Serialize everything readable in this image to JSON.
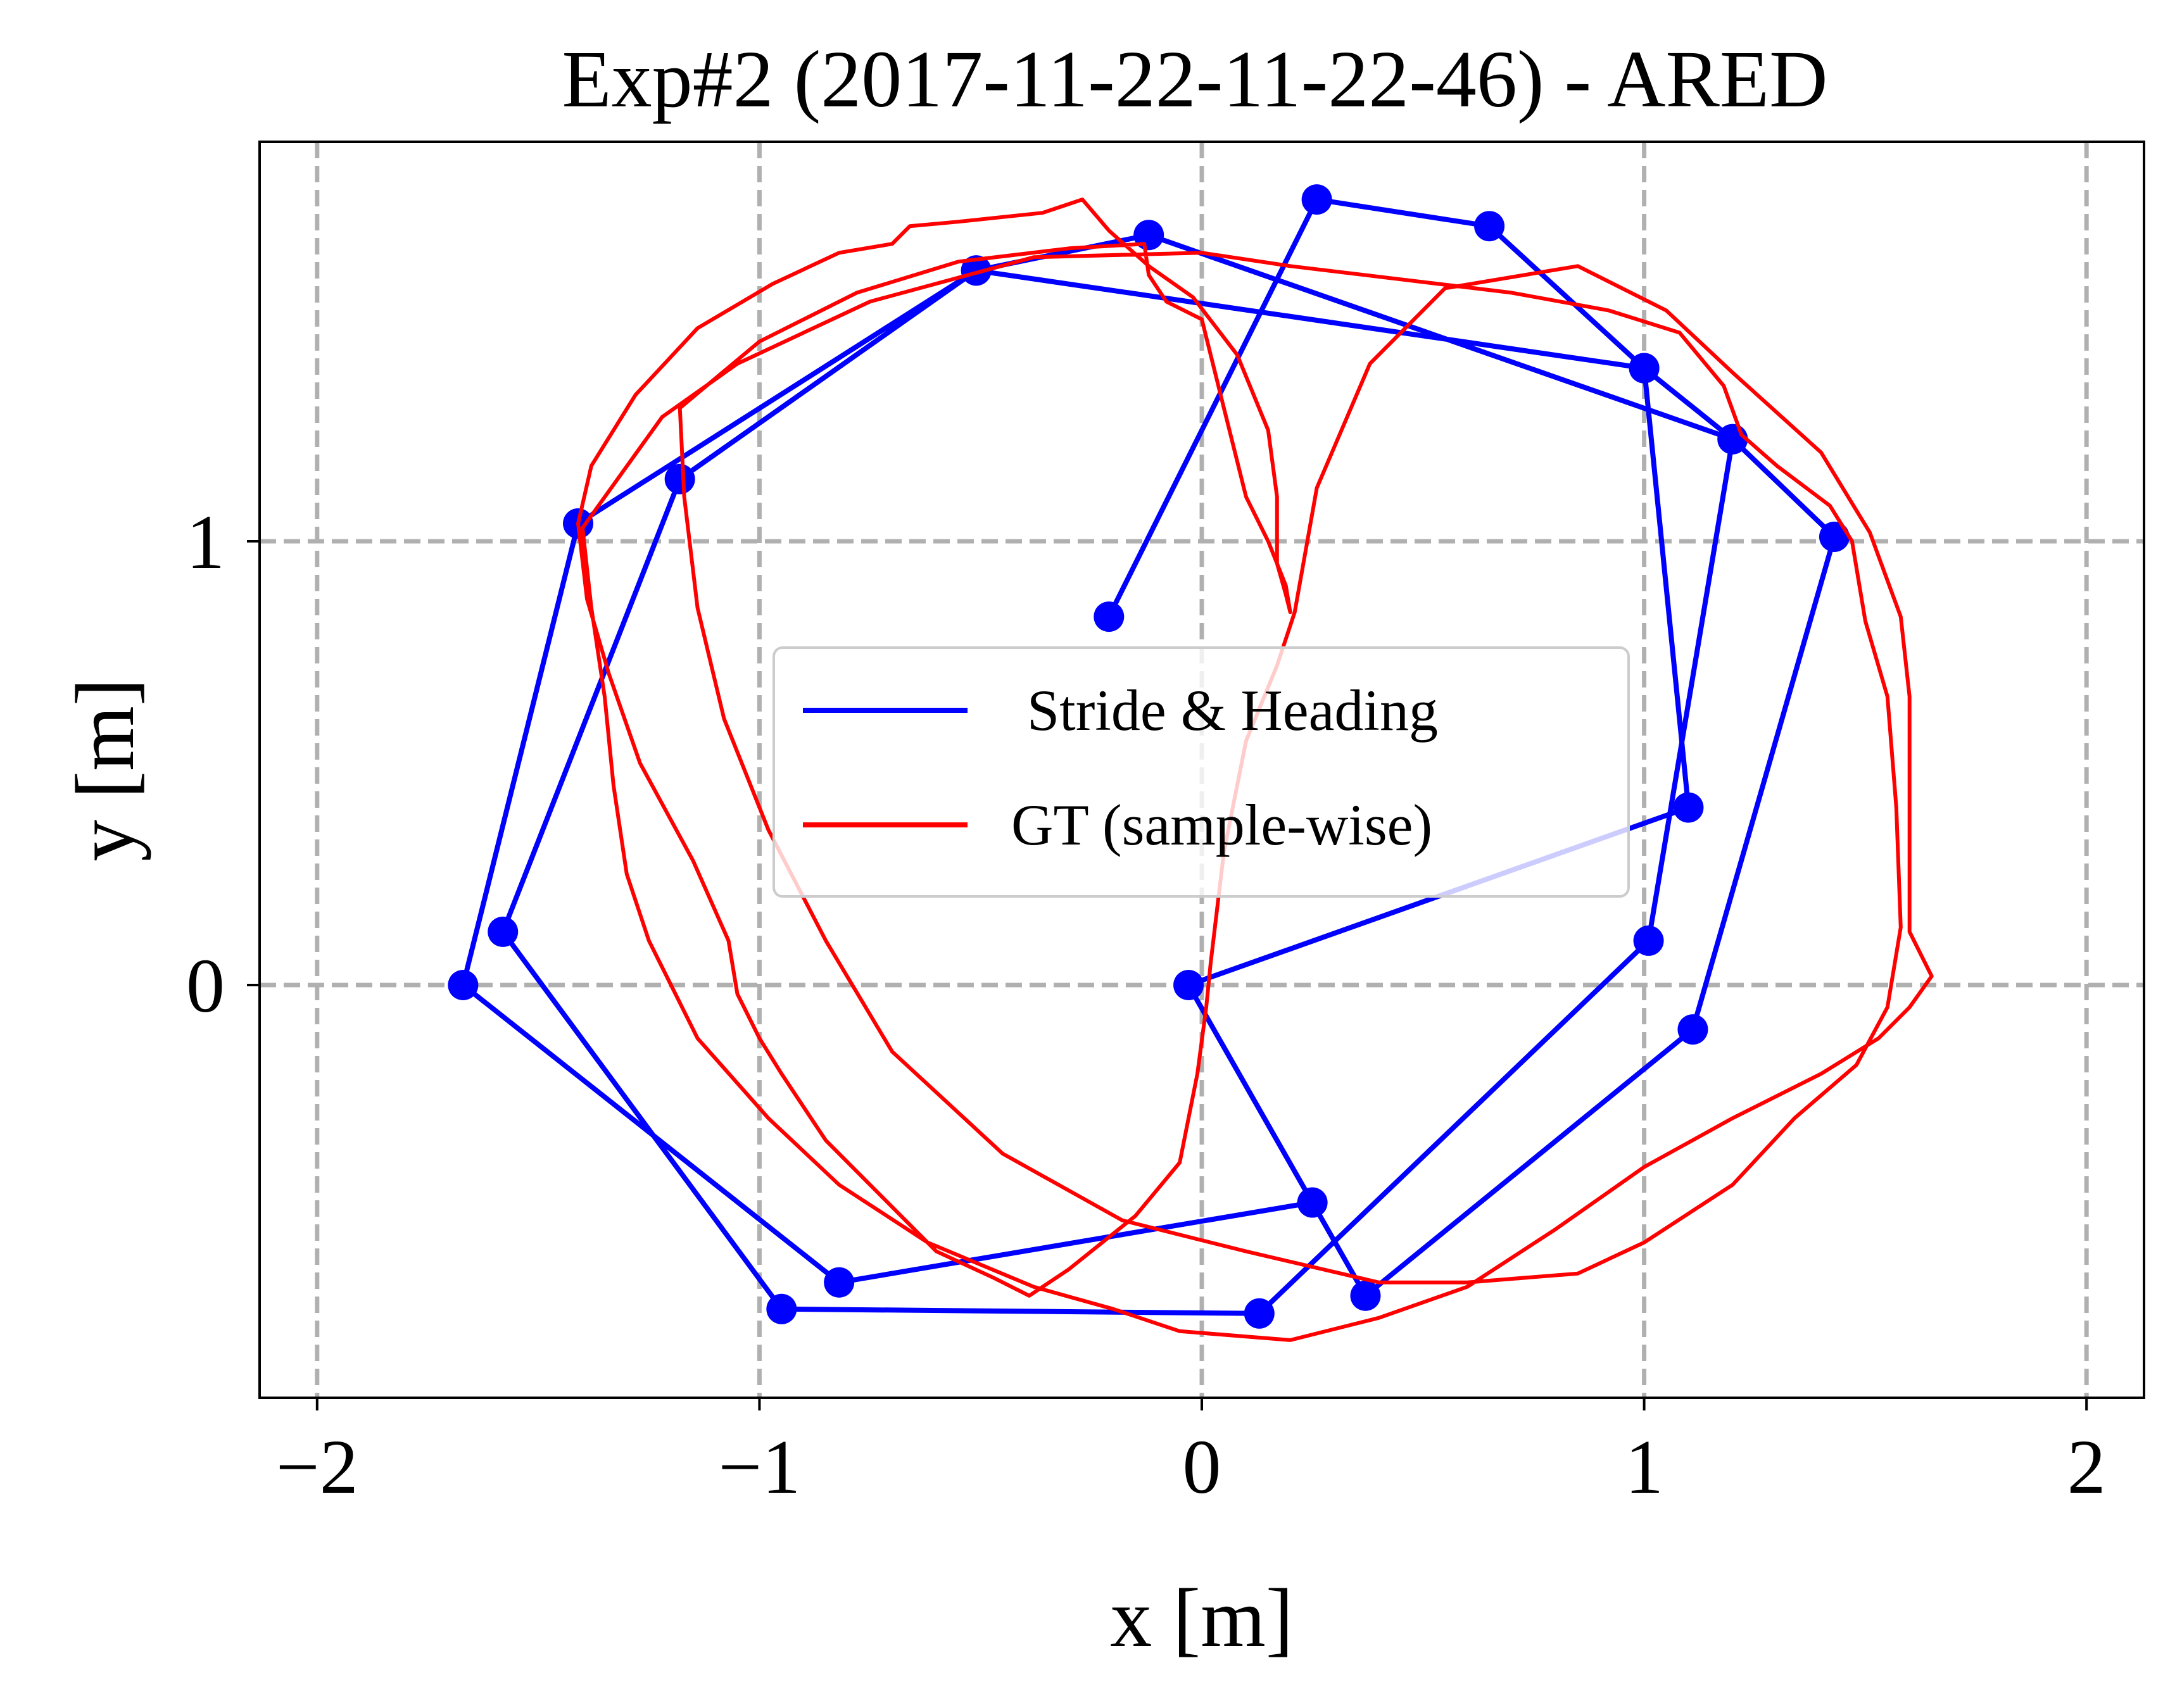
{
  "chart_data": {
    "type": "line",
    "title": "Exp#2 (2017-11-22-11-22-46) - ARED",
    "xlabel": "x [m]",
    "ylabel": "y [m]",
    "xlim": [
      -2.13,
      2.13
    ],
    "ylim": [
      -0.93,
      1.9
    ],
    "x_ticks": [
      -2,
      -1,
      0,
      1,
      2
    ],
    "x_tick_labels": [
      "−2",
      "−1",
      "0",
      "1",
      "2"
    ],
    "y_ticks": [
      0,
      1
    ],
    "y_tick_labels": [
      "0",
      "1"
    ],
    "grid": true,
    "grid_style": "dashed",
    "legend_position": "center-right",
    "colors": {
      "grid": "#b0b0b0",
      "frame": "#000000"
    },
    "series": [
      {
        "name": "Stride & Heading",
        "color": "#0000ff",
        "marker": "circle",
        "points": [
          [
            -0.21,
            0.83
          ],
          [
            0.26,
            1.77
          ],
          [
            0.65,
            1.71
          ],
          [
            1.0,
            1.39
          ],
          [
            1.1,
            0.4
          ],
          [
            -0.03,
            0.0
          ],
          [
            0.37,
            -0.7
          ],
          [
            1.11,
            -0.1
          ],
          [
            1.43,
            1.01
          ],
          [
            1.2,
            1.23
          ],
          [
            -0.12,
            1.69
          ],
          [
            -0.51,
            1.61
          ],
          [
            -1.18,
            1.14
          ],
          [
            -1.58,
            0.12
          ],
          [
            -0.95,
            -0.73
          ],
          [
            0.13,
            -0.74
          ],
          [
            1.01,
            0.1
          ],
          [
            1.2,
            1.23
          ],
          [
            1.0,
            1.39
          ],
          [
            -0.51,
            1.61
          ],
          [
            -1.41,
            1.04
          ],
          [
            -1.67,
            0.0
          ],
          [
            -0.82,
            -0.67
          ],
          [
            0.25,
            -0.49
          ]
        ]
      },
      {
        "name": "GT (sample-wise)",
        "color": "#ff0000",
        "marker": "none",
        "points": [
          [
            0.2,
            0.84
          ],
          [
            0.19,
            0.88
          ],
          [
            0.17,
            0.95
          ],
          [
            0.17,
            1.1
          ],
          [
            0.15,
            1.25
          ],
          [
            0.08,
            1.42
          ],
          [
            -0.02,
            1.55
          ],
          [
            -0.12,
            1.62
          ],
          [
            -0.21,
            1.7
          ],
          [
            -0.27,
            1.77
          ],
          [
            -0.36,
            1.74
          ],
          [
            -0.55,
            1.72
          ],
          [
            -0.66,
            1.71
          ],
          [
            -0.7,
            1.67
          ],
          [
            -0.82,
            1.65
          ],
          [
            -0.97,
            1.58
          ],
          [
            -1.14,
            1.48
          ],
          [
            -1.28,
            1.33
          ],
          [
            -1.38,
            1.17
          ],
          [
            -1.41,
            1.04
          ],
          [
            -1.39,
            0.87
          ],
          [
            -1.34,
            0.7
          ],
          [
            -1.27,
            0.5
          ],
          [
            -1.15,
            0.28
          ],
          [
            -1.07,
            0.1
          ],
          [
            -1.05,
            -0.02
          ],
          [
            -1.0,
            -0.12
          ],
          [
            -0.95,
            -0.2
          ],
          [
            -0.85,
            -0.35
          ],
          [
            -0.72,
            -0.48
          ],
          [
            -0.6,
            -0.6
          ],
          [
            -0.47,
            -0.66
          ],
          [
            -0.39,
            -0.7
          ],
          [
            -0.3,
            -0.64
          ],
          [
            -0.15,
            -0.52
          ],
          [
            -0.05,
            -0.4
          ],
          [
            -0.01,
            -0.2
          ],
          [
            0.01,
            -0.05
          ],
          [
            0.02,
            0.05
          ],
          [
            0.05,
            0.3
          ],
          [
            0.1,
            0.55
          ],
          [
            0.17,
            0.72
          ],
          [
            0.21,
            0.84
          ],
          [
            0.26,
            1.12
          ],
          [
            0.38,
            1.4
          ],
          [
            0.55,
            1.57
          ],
          [
            0.85,
            1.62
          ],
          [
            1.05,
            1.52
          ],
          [
            1.2,
            1.38
          ],
          [
            1.4,
            1.2
          ],
          [
            1.51,
            1.02
          ],
          [
            1.58,
            0.83
          ],
          [
            1.6,
            0.65
          ],
          [
            1.6,
            0.4
          ],
          [
            1.6,
            0.12
          ],
          [
            1.65,
            0.02
          ],
          [
            1.6,
            -0.05
          ],
          [
            1.53,
            -0.12
          ],
          [
            1.4,
            -0.2
          ],
          [
            1.2,
            -0.3
          ],
          [
            1.0,
            -0.41
          ],
          [
            0.8,
            -0.55
          ],
          [
            0.6,
            -0.68
          ],
          [
            0.4,
            -0.75
          ],
          [
            0.2,
            -0.8
          ],
          [
            -0.05,
            -0.78
          ],
          [
            -0.2,
            -0.73
          ],
          [
            -0.38,
            -0.68
          ],
          [
            -0.62,
            -0.58
          ],
          [
            -0.82,
            -0.45
          ],
          [
            -0.98,
            -0.3
          ],
          [
            -1.14,
            -0.12
          ],
          [
            -1.25,
            0.1
          ],
          [
            -1.3,
            0.25
          ],
          [
            -1.33,
            0.45
          ],
          [
            -1.35,
            0.65
          ],
          [
            -1.38,
            0.85
          ],
          [
            -1.4,
            1.03
          ],
          [
            -1.22,
            1.28
          ],
          [
            -1.05,
            1.4
          ],
          [
            -0.75,
            1.54
          ],
          [
            -0.38,
            1.64
          ],
          [
            0.0,
            1.65
          ],
          [
            0.2,
            1.62
          ],
          [
            0.45,
            1.59
          ],
          [
            0.7,
            1.56
          ],
          [
            0.92,
            1.52
          ],
          [
            1.08,
            1.47
          ],
          [
            1.18,
            1.35
          ],
          [
            1.22,
            1.24
          ],
          [
            1.3,
            1.17
          ],
          [
            1.42,
            1.08
          ],
          [
            1.47,
            1.0
          ],
          [
            1.5,
            0.82
          ],
          [
            1.55,
            0.65
          ],
          [
            1.57,
            0.4
          ],
          [
            1.58,
            0.13
          ],
          [
            1.55,
            -0.05
          ],
          [
            1.48,
            -0.18
          ],
          [
            1.34,
            -0.3
          ],
          [
            1.2,
            -0.45
          ],
          [
            1.0,
            -0.58
          ],
          [
            0.85,
            -0.65
          ],
          [
            0.6,
            -0.67
          ],
          [
            0.4,
            -0.67
          ],
          [
            0.1,
            -0.6
          ],
          [
            -0.18,
            -0.53
          ],
          [
            -0.45,
            -0.38
          ],
          [
            -0.7,
            -0.15
          ],
          [
            -0.85,
            0.1
          ],
          [
            -0.98,
            0.35
          ],
          [
            -1.08,
            0.6
          ],
          [
            -1.14,
            0.85
          ],
          [
            -1.17,
            1.1
          ],
          [
            -1.18,
            1.3
          ],
          [
            -1.0,
            1.45
          ],
          [
            -0.78,
            1.56
          ],
          [
            -0.55,
            1.63
          ],
          [
            -0.3,
            1.66
          ],
          [
            -0.13,
            1.67
          ],
          [
            -0.12,
            1.6
          ],
          [
            -0.08,
            1.54
          ],
          [
            0.0,
            1.5
          ],
          [
            0.05,
            1.3
          ],
          [
            0.1,
            1.1
          ],
          [
            0.15,
            1.0
          ],
          [
            0.19,
            0.9
          ],
          [
            0.2,
            0.84
          ]
        ]
      }
    ]
  }
}
